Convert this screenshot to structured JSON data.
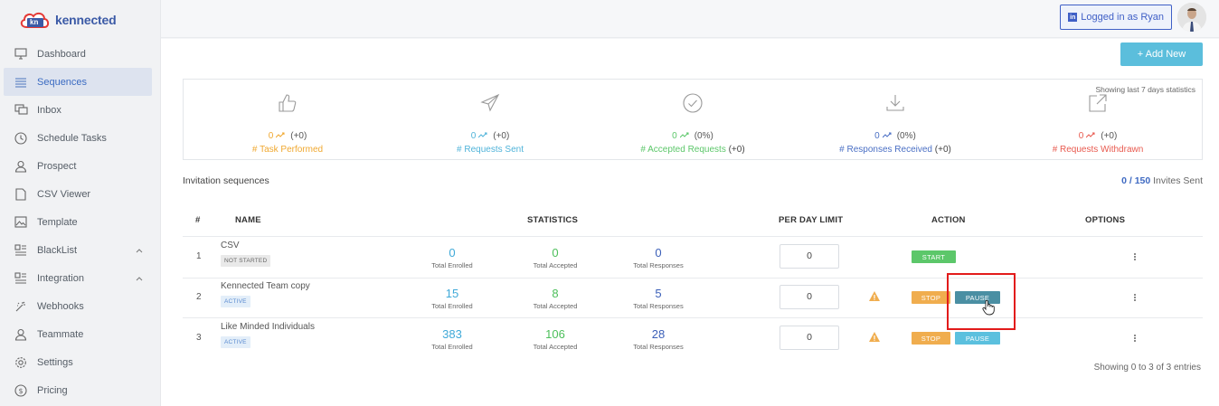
{
  "app": {
    "brand_mark": "kn",
    "brand_name": "kennected"
  },
  "sidebar": {
    "items": [
      {
        "label": "Dashboard",
        "icon": "monitor-icon"
      },
      {
        "label": "Sequences",
        "icon": "list-icon",
        "active": true
      },
      {
        "label": "Inbox",
        "icon": "chat-icon"
      },
      {
        "label": "Schedule Tasks",
        "icon": "clock-icon"
      },
      {
        "label": "Prospect",
        "icon": "user-icon"
      },
      {
        "label": "CSV Viewer",
        "icon": "file-icon"
      },
      {
        "label": "Template",
        "icon": "image-icon"
      },
      {
        "label": "BlackList",
        "icon": "grid-icon",
        "expandable": true
      },
      {
        "label": "Integration",
        "icon": "grid-icon",
        "expandable": true
      },
      {
        "label": "Webhooks",
        "icon": "sparkle-icon"
      },
      {
        "label": "Teammate",
        "icon": "user-icon"
      },
      {
        "label": "Settings",
        "icon": "gear-icon"
      },
      {
        "label": "Pricing",
        "icon": "dollar-icon"
      }
    ]
  },
  "header": {
    "login_label": "Logged in as Ryan"
  },
  "toolbar": {
    "add_new_label": "+ Add New"
  },
  "stats": {
    "note": "Showing last 7 days statistics",
    "cards": [
      {
        "value": "0",
        "delta": "(+0)",
        "label": "# Task Performed",
        "label_suffix": "",
        "color": "#f0a830"
      },
      {
        "value": "0",
        "delta": "(+0)",
        "label": "# Requests Sent",
        "label_suffix": "",
        "color": "#4fb3d9"
      },
      {
        "value": "0",
        "delta": "(0%)",
        "label": "# Accepted Requests",
        "label_suffix": " (+0)",
        "color": "#5cc76a"
      },
      {
        "value": "0",
        "delta": "(0%)",
        "label": "# Responses Received",
        "label_suffix": " (+0)",
        "color": "#4a6fc4"
      },
      {
        "value": "0",
        "delta": "(+0)",
        "label": "# Requests Withdrawn",
        "label_suffix": "",
        "color": "#e85a4f"
      }
    ]
  },
  "sequences": {
    "title": "Invitation sequences",
    "invites_used": "0",
    "invites_total": "/ 150",
    "invites_suffix": " Invites Sent",
    "columns": {
      "num": "#",
      "name": "NAME",
      "stats": "STATISTICS",
      "limit": "PER DAY LIMIT",
      "action": "ACTION",
      "options": "OPTIONS"
    },
    "rows": [
      {
        "num": "1",
        "name": "CSV",
        "status": "NOT STARTED",
        "enrolled": "0",
        "accepted": "0",
        "responses": "0",
        "limit": "0"
      },
      {
        "num": "2",
        "name": "Kennected Team copy",
        "status": "ACTIVE",
        "enrolled": "15",
        "accepted": "8",
        "responses": "5",
        "limit": "0"
      },
      {
        "num": "3",
        "name": "Like Minded Individuals",
        "status": "ACTIVE",
        "enrolled": "383",
        "accepted": "106",
        "responses": "28",
        "limit": "0"
      }
    ],
    "metric_labels": {
      "enrolled": "Total Enrolled",
      "accepted": "Total Accepted",
      "responses": "Total Responses"
    },
    "buttons": {
      "start": "START",
      "stop": "STOP",
      "pause": "PAUSE"
    },
    "footer": "Showing 0 to 3 of 3 entries"
  }
}
